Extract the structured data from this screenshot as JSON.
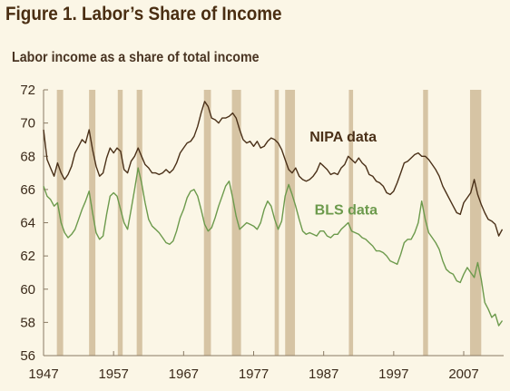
{
  "header": {
    "title": "Figure 1. Labor’s Share of Income",
    "subtitle": "Labor income as a share of total income"
  },
  "colors": {
    "background": "#fbf6e6",
    "recession_band": "#d6c4a4",
    "nipa": "#4a3018",
    "bls": "#6c9a4c",
    "axis": "#8a7a64"
  },
  "chart_data": {
    "type": "line",
    "title": "Figure 1. Labor’s Share of Income",
    "ylabel": "Labor income as a share of total income",
    "xlabel": "",
    "xlim": [
      1947,
      2012.7
    ],
    "ylim": [
      56,
      72
    ],
    "x_ticks": [
      1947,
      1957,
      1967,
      1977,
      1987,
      1997,
      2007
    ],
    "y_ticks": [
      56,
      58,
      60,
      62,
      64,
      66,
      68,
      70,
      72
    ],
    "grid": false,
    "shaded_periods": [
      [
        1948.9,
        1949.8
      ],
      [
        1953.5,
        1954.4
      ],
      [
        1957.6,
        1958.3
      ],
      [
        1960.3,
        1961.1
      ],
      [
        1969.9,
        1970.9
      ],
      [
        1973.9,
        1975.2
      ],
      [
        1980.0,
        1980.6
      ],
      [
        1981.5,
        1982.9
      ],
      [
        1990.6,
        1991.2
      ],
      [
        2001.2,
        2001.9
      ],
      [
        2007.9,
        2009.5
      ]
    ],
    "series": [
      {
        "name": "NIPA data",
        "label_anchor": [
          1985.0,
          68.9
        ],
        "points": [
          [
            1947.0,
            69.6
          ],
          [
            1947.5,
            67.8
          ],
          [
            1948.0,
            67.3
          ],
          [
            1948.5,
            66.8
          ],
          [
            1949.0,
            67.6
          ],
          [
            1949.5,
            67.0
          ],
          [
            1950.0,
            66.6
          ],
          [
            1950.5,
            66.9
          ],
          [
            1951.0,
            67.4
          ],
          [
            1951.5,
            68.2
          ],
          [
            1952.0,
            68.6
          ],
          [
            1952.5,
            69.0
          ],
          [
            1953.0,
            68.8
          ],
          [
            1953.5,
            69.6
          ],
          [
            1954.0,
            68.4
          ],
          [
            1954.5,
            67.4
          ],
          [
            1955.0,
            66.8
          ],
          [
            1955.5,
            67.0
          ],
          [
            1956.0,
            67.9
          ],
          [
            1956.5,
            68.5
          ],
          [
            1957.0,
            68.2
          ],
          [
            1957.5,
            68.5
          ],
          [
            1958.0,
            68.3
          ],
          [
            1958.5,
            67.2
          ],
          [
            1959.0,
            67.0
          ],
          [
            1959.5,
            67.7
          ],
          [
            1960.0,
            68.0
          ],
          [
            1960.5,
            68.5
          ],
          [
            1961.0,
            68.0
          ],
          [
            1961.5,
            67.5
          ],
          [
            1962.0,
            67.3
          ],
          [
            1962.5,
            67.0
          ],
          [
            1963.0,
            67.0
          ],
          [
            1963.5,
            66.9
          ],
          [
            1964.0,
            67.0
          ],
          [
            1964.5,
            67.2
          ],
          [
            1965.0,
            67.0
          ],
          [
            1965.5,
            67.2
          ],
          [
            1966.0,
            67.6
          ],
          [
            1966.5,
            68.2
          ],
          [
            1967.0,
            68.5
          ],
          [
            1967.5,
            68.8
          ],
          [
            1968.0,
            68.9
          ],
          [
            1968.5,
            69.2
          ],
          [
            1969.0,
            69.8
          ],
          [
            1969.5,
            70.6
          ],
          [
            1970.0,
            71.3
          ],
          [
            1970.5,
            71.0
          ],
          [
            1971.0,
            70.3
          ],
          [
            1971.5,
            70.2
          ],
          [
            1972.0,
            70.0
          ],
          [
            1972.5,
            70.3
          ],
          [
            1973.0,
            70.3
          ],
          [
            1973.5,
            70.4
          ],
          [
            1974.0,
            70.6
          ],
          [
            1974.5,
            70.3
          ],
          [
            1975.0,
            69.6
          ],
          [
            1975.5,
            69.0
          ],
          [
            1976.0,
            68.8
          ],
          [
            1976.5,
            68.9
          ],
          [
            1977.0,
            68.6
          ],
          [
            1977.5,
            68.9
          ],
          [
            1978.0,
            68.5
          ],
          [
            1978.5,
            68.6
          ],
          [
            1979.0,
            68.9
          ],
          [
            1979.5,
            69.1
          ],
          [
            1980.0,
            69.0
          ],
          [
            1980.5,
            68.8
          ],
          [
            1981.0,
            68.4
          ],
          [
            1981.5,
            67.8
          ],
          [
            1982.0,
            67.2
          ],
          [
            1982.5,
            67.0
          ],
          [
            1983.0,
            67.3
          ],
          [
            1983.5,
            66.8
          ],
          [
            1984.0,
            66.6
          ],
          [
            1984.5,
            66.5
          ],
          [
            1985.0,
            66.6
          ],
          [
            1985.5,
            66.8
          ],
          [
            1986.0,
            67.1
          ],
          [
            1986.5,
            67.6
          ],
          [
            1987.0,
            67.4
          ],
          [
            1987.5,
            67.2
          ],
          [
            1988.0,
            66.9
          ],
          [
            1988.5,
            67.0
          ],
          [
            1989.0,
            66.9
          ],
          [
            1989.5,
            67.3
          ],
          [
            1990.0,
            67.5
          ],
          [
            1990.5,
            68.0
          ],
          [
            1991.0,
            67.8
          ],
          [
            1991.5,
            67.6
          ],
          [
            1992.0,
            67.9
          ],
          [
            1992.5,
            67.6
          ],
          [
            1993.0,
            67.4
          ],
          [
            1993.5,
            66.9
          ],
          [
            1994.0,
            66.8
          ],
          [
            1994.5,
            66.5
          ],
          [
            1995.0,
            66.4
          ],
          [
            1995.5,
            66.2
          ],
          [
            1996.0,
            65.8
          ],
          [
            1996.5,
            65.7
          ],
          [
            1997.0,
            65.9
          ],
          [
            1997.5,
            66.4
          ],
          [
            1998.0,
            67.0
          ],
          [
            1998.5,
            67.6
          ],
          [
            1999.0,
            67.7
          ],
          [
            1999.5,
            67.9
          ],
          [
            2000.0,
            68.1
          ],
          [
            2000.5,
            68.2
          ],
          [
            2001.0,
            68.0
          ],
          [
            2001.5,
            68.0
          ],
          [
            2002.0,
            67.8
          ],
          [
            2002.5,
            67.5
          ],
          [
            2003.0,
            67.2
          ],
          [
            2003.5,
            66.8
          ],
          [
            2004.0,
            66.2
          ],
          [
            2004.5,
            65.8
          ],
          [
            2005.0,
            65.4
          ],
          [
            2005.5,
            65.0
          ],
          [
            2006.0,
            64.6
          ],
          [
            2006.5,
            64.5
          ],
          [
            2007.0,
            65.2
          ],
          [
            2007.5,
            65.5
          ],
          [
            2008.0,
            65.8
          ],
          [
            2008.5,
            66.6
          ],
          [
            2009.0,
            65.7
          ],
          [
            2009.5,
            65.1
          ],
          [
            2010.0,
            64.6
          ],
          [
            2010.5,
            64.2
          ],
          [
            2011.0,
            64.1
          ],
          [
            2011.5,
            63.9
          ],
          [
            2012.0,
            63.2
          ],
          [
            2012.5,
            63.6
          ]
        ]
      },
      {
        "name": "BLS data",
        "label_anchor": [
          1985.7,
          64.5
        ],
        "points": [
          [
            1947.0,
            66.2
          ],
          [
            1947.5,
            65.6
          ],
          [
            1948.0,
            65.4
          ],
          [
            1948.5,
            65.0
          ],
          [
            1949.0,
            65.2
          ],
          [
            1949.5,
            64.0
          ],
          [
            1950.0,
            63.4
          ],
          [
            1950.5,
            63.1
          ],
          [
            1951.0,
            63.3
          ],
          [
            1951.5,
            63.6
          ],
          [
            1952.0,
            64.2
          ],
          [
            1952.5,
            64.8
          ],
          [
            1953.0,
            65.3
          ],
          [
            1953.5,
            65.9
          ],
          [
            1954.0,
            64.6
          ],
          [
            1954.5,
            63.4
          ],
          [
            1955.0,
            63.0
          ],
          [
            1955.5,
            63.2
          ],
          [
            1956.0,
            64.5
          ],
          [
            1956.5,
            65.6
          ],
          [
            1957.0,
            65.8
          ],
          [
            1957.5,
            65.6
          ],
          [
            1958.0,
            64.8
          ],
          [
            1958.5,
            64.0
          ],
          [
            1959.0,
            63.6
          ],
          [
            1959.5,
            64.8
          ],
          [
            1960.0,
            66.0
          ],
          [
            1960.5,
            67.3
          ],
          [
            1961.0,
            66.4
          ],
          [
            1961.5,
            65.2
          ],
          [
            1962.0,
            64.2
          ],
          [
            1962.5,
            63.8
          ],
          [
            1963.0,
            63.6
          ],
          [
            1963.5,
            63.4
          ],
          [
            1964.0,
            63.1
          ],
          [
            1964.5,
            62.8
          ],
          [
            1965.0,
            62.7
          ],
          [
            1965.5,
            62.9
          ],
          [
            1966.0,
            63.5
          ],
          [
            1966.5,
            64.3
          ],
          [
            1967.0,
            64.8
          ],
          [
            1967.5,
            65.5
          ],
          [
            1968.0,
            65.9
          ],
          [
            1968.5,
            66.0
          ],
          [
            1969.0,
            65.6
          ],
          [
            1969.5,
            64.8
          ],
          [
            1970.0,
            63.9
          ],
          [
            1970.5,
            63.5
          ],
          [
            1971.0,
            63.7
          ],
          [
            1971.5,
            64.3
          ],
          [
            1972.0,
            65.0
          ],
          [
            1972.5,
            65.6
          ],
          [
            1973.0,
            66.2
          ],
          [
            1973.5,
            66.5
          ],
          [
            1974.0,
            65.5
          ],
          [
            1974.5,
            64.4
          ],
          [
            1975.0,
            63.6
          ],
          [
            1975.5,
            63.8
          ],
          [
            1976.0,
            64.0
          ],
          [
            1976.5,
            63.9
          ],
          [
            1977.0,
            63.8
          ],
          [
            1977.5,
            63.6
          ],
          [
            1978.0,
            64.0
          ],
          [
            1978.5,
            64.8
          ],
          [
            1979.0,
            65.3
          ],
          [
            1979.5,
            65.0
          ],
          [
            1980.0,
            64.2
          ],
          [
            1980.5,
            63.6
          ],
          [
            1981.0,
            64.1
          ],
          [
            1981.5,
            65.6
          ],
          [
            1982.0,
            66.3
          ],
          [
            1982.5,
            65.7
          ],
          [
            1983.0,
            65.0
          ],
          [
            1983.5,
            64.2
          ],
          [
            1984.0,
            63.5
          ],
          [
            1984.5,
            63.3
          ],
          [
            1985.0,
            63.4
          ],
          [
            1985.5,
            63.3
          ],
          [
            1986.0,
            63.2
          ],
          [
            1986.5,
            63.5
          ],
          [
            1987.0,
            63.5
          ],
          [
            1987.5,
            63.2
          ],
          [
            1988.0,
            63.1
          ],
          [
            1988.5,
            63.3
          ],
          [
            1989.0,
            63.3
          ],
          [
            1989.5,
            63.6
          ],
          [
            1990.0,
            63.8
          ],
          [
            1990.5,
            64.0
          ],
          [
            1991.0,
            63.5
          ],
          [
            1991.5,
            63.4
          ],
          [
            1992.0,
            63.3
          ],
          [
            1992.5,
            63.1
          ],
          [
            1993.0,
            63.0
          ],
          [
            1993.5,
            62.8
          ],
          [
            1994.0,
            62.6
          ],
          [
            1994.5,
            62.3
          ],
          [
            1995.0,
            62.3
          ],
          [
            1995.5,
            62.2
          ],
          [
            1996.0,
            62.0
          ],
          [
            1996.5,
            61.7
          ],
          [
            1997.0,
            61.6
          ],
          [
            1997.5,
            61.5
          ],
          [
            1998.0,
            62.1
          ],
          [
            1998.5,
            62.8
          ],
          [
            1999.0,
            63.0
          ],
          [
            1999.5,
            63.0
          ],
          [
            2000.0,
            63.4
          ],
          [
            2000.5,
            64.0
          ],
          [
            2001.0,
            65.3
          ],
          [
            2001.5,
            64.2
          ],
          [
            2002.0,
            63.4
          ],
          [
            2002.5,
            63.1
          ],
          [
            2003.0,
            62.8
          ],
          [
            2003.5,
            62.4
          ],
          [
            2004.0,
            61.7
          ],
          [
            2004.5,
            61.2
          ],
          [
            2005.0,
            61.0
          ],
          [
            2005.5,
            60.9
          ],
          [
            2006.0,
            60.5
          ],
          [
            2006.5,
            60.4
          ],
          [
            2007.0,
            60.9
          ],
          [
            2007.5,
            61.3
          ],
          [
            2008.0,
            61.0
          ],
          [
            2008.5,
            60.7
          ],
          [
            2009.0,
            61.6
          ],
          [
            2009.5,
            60.6
          ],
          [
            2010.0,
            59.2
          ],
          [
            2010.5,
            58.8
          ],
          [
            2011.0,
            58.3
          ],
          [
            2011.5,
            58.5
          ],
          [
            2012.0,
            57.8
          ],
          [
            2012.5,
            58.1
          ]
        ]
      }
    ]
  }
}
